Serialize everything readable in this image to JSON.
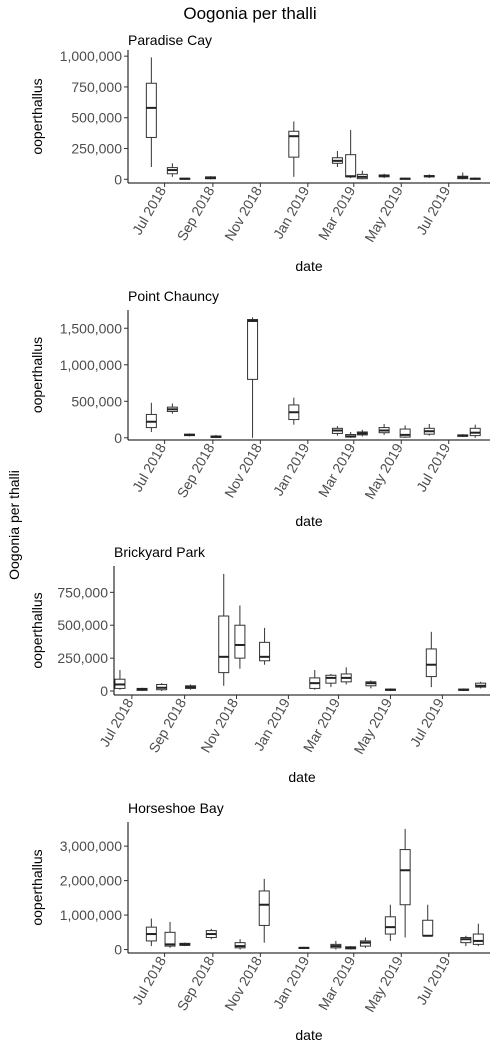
{
  "title": "Oogonia per thalli",
  "ylabel_outer": "Oogonia per thalli",
  "chart_data": [
    {
      "type": "boxplot",
      "title": "Paradise Cay",
      "xlabel": "date",
      "ylabel": "ooperthallus",
      "ylim": [
        -30000,
        1050000
      ],
      "yticks": [
        0,
        250000,
        500000,
        750000,
        1000000
      ],
      "ytick_labels": [
        "0",
        "250,000",
        "500,000",
        "750,000",
        "1,000,000"
      ],
      "xlim": [
        "2018-05-15",
        "2019-08-23"
      ],
      "xticks": [
        "2018-07-01",
        "2018-09-01",
        "2018-11-01",
        "2019-01-01",
        "2019-03-01",
        "2019-05-01",
        "2019-07-01"
      ],
      "xtick_labels": [
        "Jul 2018",
        "Sep 2018",
        "Nov 2018",
        "Jan 2019",
        "Mar 2019",
        "May 2019",
        "Jul 2019"
      ],
      "boxes": [
        {
          "date": "2018-06-14",
          "min": 100000,
          "q1": 340000,
          "median": 580000,
          "q3": 780000,
          "max": 990000
        },
        {
          "date": "2018-07-11",
          "min": 20000,
          "q1": 45000,
          "median": 75000,
          "q3": 95000,
          "max": 130000
        },
        {
          "date": "2018-07-27",
          "min": 0,
          "q1": 0,
          "median": 5000,
          "q3": 8000,
          "max": 10000
        },
        {
          "date": "2018-08-29",
          "min": 0,
          "q1": 5000,
          "median": 10000,
          "q3": 20000,
          "max": 25000
        },
        {
          "date": "2018-12-14",
          "min": 20000,
          "q1": 180000,
          "median": 350000,
          "q3": 390000,
          "max": 470000
        },
        {
          "date": "2019-02-08",
          "min": 100000,
          "q1": 130000,
          "median": 150000,
          "q3": 175000,
          "max": 230000
        },
        {
          "date": "2019-02-25",
          "min": 10000,
          "q1": 20000,
          "median": 25000,
          "q3": 200000,
          "max": 400000
        },
        {
          "date": "2019-03-12",
          "min": 0,
          "q1": 5000,
          "median": 20000,
          "q3": 40000,
          "max": 70000
        },
        {
          "date": "2019-04-09",
          "min": 10000,
          "q1": 20000,
          "median": 30000,
          "q3": 35000,
          "max": 45000
        },
        {
          "date": "2019-05-06",
          "min": 0,
          "q1": 3000,
          "median": 5000,
          "q3": 8000,
          "max": 12000
        },
        {
          "date": "2019-06-06",
          "min": 10000,
          "q1": 20000,
          "median": 25000,
          "q3": 30000,
          "max": 40000
        },
        {
          "date": "2019-07-19",
          "min": 0,
          "q1": 5000,
          "median": 15000,
          "q3": 25000,
          "max": 55000
        },
        {
          "date": "2019-08-04",
          "min": 0,
          "q1": 3000,
          "median": 5000,
          "q3": 8000,
          "max": 15000
        }
      ]
    },
    {
      "type": "boxplot",
      "title": "Point Chauncy",
      "xlabel": "date",
      "ylabel": "ooperthallus",
      "ylim": [
        -30000,
        1750000
      ],
      "yticks": [
        0,
        500000,
        1000000,
        1500000
      ],
      "ytick_labels": [
        "0",
        "500,000",
        "1,000,000",
        "1,500,000"
      ],
      "xlim": [
        "2018-05-15",
        "2019-08-23"
      ],
      "xticks": [
        "2018-07-01",
        "2018-09-01",
        "2018-11-01",
        "2019-01-01",
        "2019-03-01",
        "2019-05-01",
        "2019-07-01"
      ],
      "xtick_labels": [
        "Jul 2018",
        "Sep 2018",
        "Nov 2018",
        "Jan 2019",
        "Mar 2019",
        "May 2019",
        "Jul 2019"
      ],
      "boxes": [
        {
          "date": "2018-06-14",
          "min": 80000,
          "q1": 140000,
          "median": 220000,
          "q3": 320000,
          "max": 480000
        },
        {
          "date": "2018-07-11",
          "min": 330000,
          "q1": 360000,
          "median": 390000,
          "q3": 420000,
          "max": 470000
        },
        {
          "date": "2018-08-02",
          "min": 20000,
          "q1": 30000,
          "median": 40000,
          "q3": 50000,
          "max": 60000
        },
        {
          "date": "2018-09-05",
          "min": 0,
          "q1": 5000,
          "median": 15000,
          "q3": 25000,
          "max": 40000
        },
        {
          "date": "2018-10-22",
          "min": 0,
          "q1": 800000,
          "median": 1600000,
          "q3": 1620000,
          "max": 1650000
        },
        {
          "date": "2018-12-14",
          "min": 180000,
          "q1": 250000,
          "median": 350000,
          "q3": 450000,
          "max": 550000
        },
        {
          "date": "2019-02-08",
          "min": 30000,
          "q1": 60000,
          "median": 100000,
          "q3": 130000,
          "max": 160000
        },
        {
          "date": "2019-02-25",
          "min": 0,
          "q1": 10000,
          "median": 20000,
          "q3": 45000,
          "max": 80000
        },
        {
          "date": "2019-03-12",
          "min": 20000,
          "q1": 40000,
          "median": 60000,
          "q3": 80000,
          "max": 110000
        },
        {
          "date": "2019-04-09",
          "min": 40000,
          "q1": 70000,
          "median": 100000,
          "q3": 140000,
          "max": 190000
        },
        {
          "date": "2019-05-06",
          "min": 0,
          "q1": 10000,
          "median": 40000,
          "q3": 120000,
          "max": 170000
        },
        {
          "date": "2019-06-06",
          "min": 30000,
          "q1": 50000,
          "median": 90000,
          "q3": 130000,
          "max": 190000
        },
        {
          "date": "2019-07-19",
          "min": 10000,
          "q1": 20000,
          "median": 30000,
          "q3": 40000,
          "max": 50000
        },
        {
          "date": "2019-08-04",
          "min": 0,
          "q1": 30000,
          "median": 70000,
          "q3": 130000,
          "max": 180000
        }
      ]
    },
    {
      "type": "boxplot",
      "title": "Brickyard Park",
      "xlabel": "date",
      "ylabel": "ooperthallus",
      "ylim": [
        -30000,
        950000
      ],
      "yticks": [
        0,
        250000,
        500000,
        750000
      ],
      "ytick_labels": [
        "0",
        "250,000",
        "500,000",
        "750,000"
      ],
      "xlim": [
        "2018-06-10",
        "2019-08-26"
      ],
      "xticks": [
        "2018-07-01",
        "2018-09-01",
        "2018-11-01",
        "2019-01-01",
        "2019-03-01",
        "2019-05-01",
        "2019-07-01"
      ],
      "xtick_labels": [
        "Jul 2018",
        "Sep 2018",
        "Nov 2018",
        "Jan 2019",
        "Mar 2019",
        "May 2019",
        "Jul 2019"
      ],
      "boxes": [
        {
          "date": "2018-06-17",
          "min": 10000,
          "q1": 20000,
          "median": 50000,
          "q3": 90000,
          "max": 160000
        },
        {
          "date": "2018-07-13",
          "min": 0,
          "q1": 5000,
          "median": 15000,
          "q3": 20000,
          "max": 25000
        },
        {
          "date": "2018-08-05",
          "min": 0,
          "q1": 10000,
          "median": 25000,
          "q3": 50000,
          "max": 60000
        },
        {
          "date": "2018-09-08",
          "min": 10000,
          "q1": 20000,
          "median": 30000,
          "q3": 40000,
          "max": 50000
        },
        {
          "date": "2018-10-17",
          "min": 40000,
          "q1": 140000,
          "median": 260000,
          "q3": 570000,
          "max": 890000
        },
        {
          "date": "2018-11-05",
          "min": 170000,
          "q1": 250000,
          "median": 350000,
          "q3": 500000,
          "max": 650000
        },
        {
          "date": "2018-12-04",
          "min": 200000,
          "q1": 230000,
          "median": 260000,
          "q3": 370000,
          "max": 480000
        },
        {
          "date": "2019-02-01",
          "min": 10000,
          "q1": 20000,
          "median": 60000,
          "q3": 100000,
          "max": 160000
        },
        {
          "date": "2019-02-20",
          "min": 30000,
          "q1": 60000,
          "median": 100000,
          "q3": 120000,
          "max": 130000
        },
        {
          "date": "2019-03-10",
          "min": 50000,
          "q1": 70000,
          "median": 100000,
          "q3": 130000,
          "max": 180000
        },
        {
          "date": "2019-04-08",
          "min": 20000,
          "q1": 40000,
          "median": 60000,
          "q3": 70000,
          "max": 80000
        },
        {
          "date": "2019-05-01",
          "min": 0,
          "q1": 5000,
          "median": 10000,
          "q3": 15000,
          "max": 20000
        },
        {
          "date": "2019-06-18",
          "min": 30000,
          "q1": 110000,
          "median": 200000,
          "q3": 320000,
          "max": 450000
        },
        {
          "date": "2019-07-26",
          "min": 0,
          "q1": 5000,
          "median": 10000,
          "q3": 15000,
          "max": 20000
        },
        {
          "date": "2019-08-15",
          "min": 20000,
          "q1": 30000,
          "median": 40000,
          "q3": 60000,
          "max": 70000
        }
      ]
    },
    {
      "type": "boxplot",
      "title": "Horseshoe Bay",
      "xlabel": "date",
      "ylabel": "ooperthallus",
      "ylim": [
        -100000,
        3700000
      ],
      "yticks": [
        0,
        1000000,
        2000000,
        3000000
      ],
      "ytick_labels": [
        "0",
        "1,000,000",
        "2,000,000",
        "3,000,000"
      ],
      "xlim": [
        "2018-05-15",
        "2019-08-23"
      ],
      "xticks": [
        "2018-07-01",
        "2018-09-01",
        "2018-11-01",
        "2019-01-01",
        "2019-03-01",
        "2019-05-01",
        "2019-07-01"
      ],
      "xtick_labels": [
        "Jul 2018",
        "Sep 2018",
        "Nov 2018",
        "Jan 2019",
        "Mar 2019",
        "May 2019",
        "Jul 2019"
      ],
      "boxes": [
        {
          "date": "2018-06-14",
          "min": 100000,
          "q1": 250000,
          "median": 450000,
          "q3": 650000,
          "max": 900000
        },
        {
          "date": "2018-07-08",
          "min": 50000,
          "q1": 100000,
          "median": 150000,
          "q3": 500000,
          "max": 800000
        },
        {
          "date": "2018-07-27",
          "min": 100000,
          "q1": 120000,
          "median": 150000,
          "q3": 180000,
          "max": 200000
        },
        {
          "date": "2018-08-30",
          "min": 300000,
          "q1": 350000,
          "median": 450000,
          "q3": 550000,
          "max": 600000
        },
        {
          "date": "2018-10-06",
          "min": 0,
          "q1": 50000,
          "median": 100000,
          "q3": 200000,
          "max": 300000
        },
        {
          "date": "2018-11-06",
          "min": 200000,
          "q1": 700000,
          "median": 1300000,
          "q3": 1700000,
          "max": 2050000
        },
        {
          "date": "2018-12-27",
          "min": 30000,
          "q1": 40000,
          "median": 50000,
          "q3": 60000,
          "max": 80000
        },
        {
          "date": "2019-02-06",
          "min": 0,
          "q1": 50000,
          "median": 100000,
          "q3": 150000,
          "max": 250000
        },
        {
          "date": "2019-02-25",
          "min": 0,
          "q1": 20000,
          "median": 50000,
          "q3": 80000,
          "max": 100000
        },
        {
          "date": "2019-03-16",
          "min": 50000,
          "q1": 100000,
          "median": 200000,
          "q3": 250000,
          "max": 350000
        },
        {
          "date": "2019-04-17",
          "min": 250000,
          "q1": 450000,
          "median": 650000,
          "q3": 950000,
          "max": 1300000
        },
        {
          "date": "2019-05-06",
          "min": 350000,
          "q1": 1300000,
          "median": 2300000,
          "q3": 2900000,
          "max": 3500000
        },
        {
          "date": "2019-06-04",
          "min": 400000,
          "q1": 400000,
          "median": 400000,
          "q3": 850000,
          "max": 1300000
        },
        {
          "date": "2019-07-23",
          "min": 100000,
          "q1": 200000,
          "median": 300000,
          "q3": 350000,
          "max": 400000
        },
        {
          "date": "2019-08-08",
          "min": 100000,
          "q1": 150000,
          "median": 250000,
          "q3": 450000,
          "max": 750000
        }
      ]
    }
  ]
}
